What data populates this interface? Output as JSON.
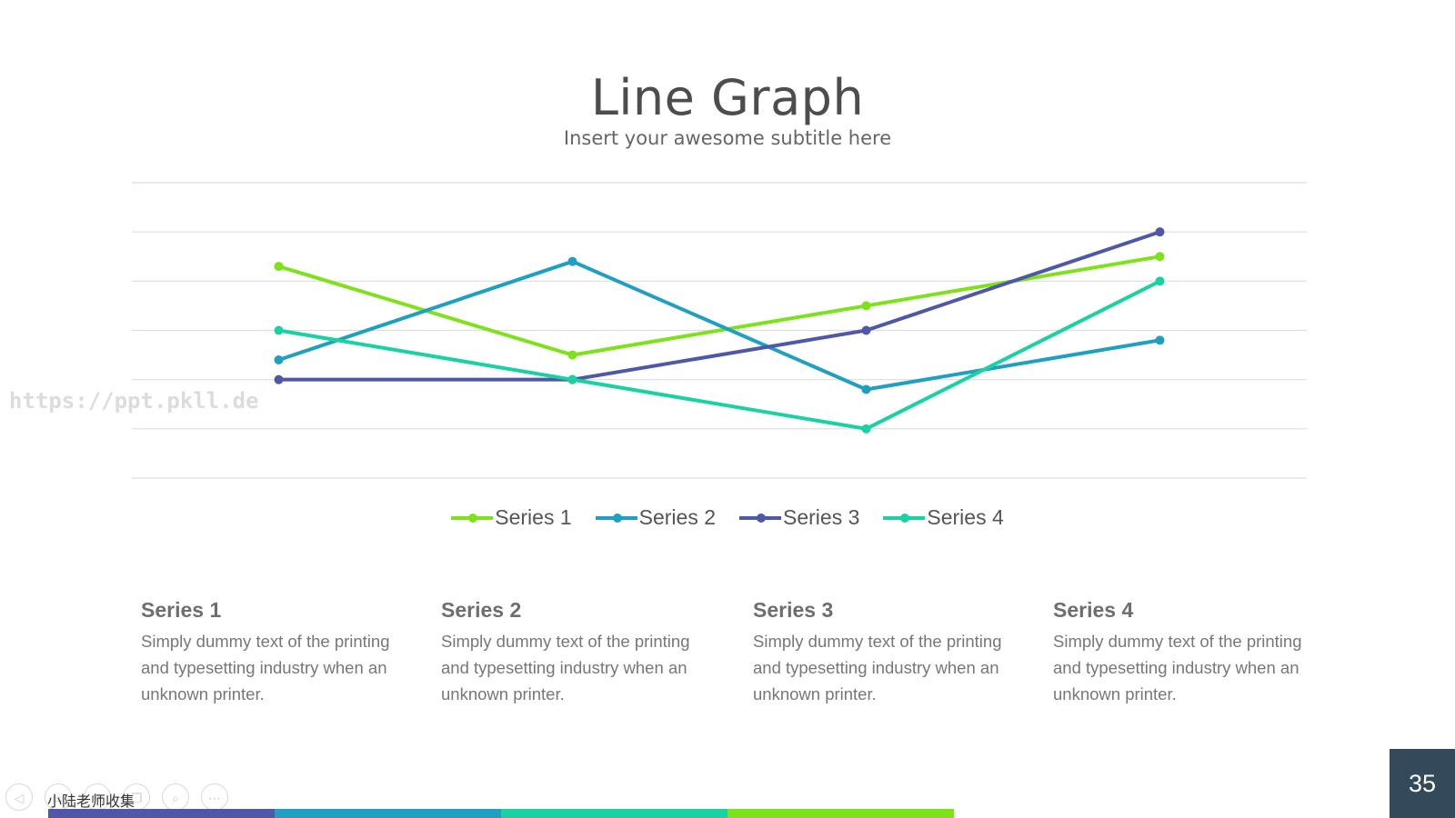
{
  "slide": {
    "title": "Line Graph",
    "subtitle": "Insert your awesome subtitle here",
    "watermark": "https://ppt.pkll.de",
    "page_number": "35",
    "nav_caption": "小陆老师收集"
  },
  "nav_buttons": [
    {
      "name": "prev-icon",
      "glyph": "◁"
    },
    {
      "name": "slides-icon",
      "glyph": "▭"
    },
    {
      "name": "pen-icon",
      "glyph": "✎"
    },
    {
      "name": "copy-icon",
      "glyph": "❐"
    },
    {
      "name": "zoom-icon",
      "glyph": "⌕"
    },
    {
      "name": "more-icon",
      "glyph": "⋯"
    }
  ],
  "bottom_bar_colors": [
    "#4f57a8",
    "#1f9fc1",
    "#18d3a1",
    "#7ee21b"
  ],
  "chart_data": {
    "type": "line",
    "categories": [
      "",
      "",
      "",
      ""
    ],
    "ylim": [
      0,
      6
    ],
    "grid": true,
    "legend_position": "bottom",
    "series": [
      {
        "name": "Series 1",
        "color": "#7ee21b",
        "values": [
          4.3,
          2.5,
          3.5,
          4.5
        ]
      },
      {
        "name": "Series 2",
        "color": "#1f9fc1",
        "values": [
          2.4,
          4.4,
          1.8,
          2.8
        ]
      },
      {
        "name": "Series 3",
        "color": "#4f57a8",
        "values": [
          2.0,
          2.0,
          3.0,
          5.0
        ]
      },
      {
        "name": "Series 4",
        "color": "#18d3a1",
        "values": [
          3.0,
          2.0,
          1.0,
          4.0
        ]
      }
    ]
  },
  "notes": [
    {
      "title": "Series 1",
      "text": "Simply dummy text of the printing and typesetting industry when an unknown printer."
    },
    {
      "title": "Series 2",
      "text": "Simply dummy text of the printing and typesetting industry when an unknown printer."
    },
    {
      "title": "Series 3",
      "text": "Simply dummy text of the printing and typesetting industry when an unknown printer."
    },
    {
      "title": "Series 4",
      "text": "Simply dummy text of the printing and typesetting industry when an unknown printer."
    }
  ]
}
